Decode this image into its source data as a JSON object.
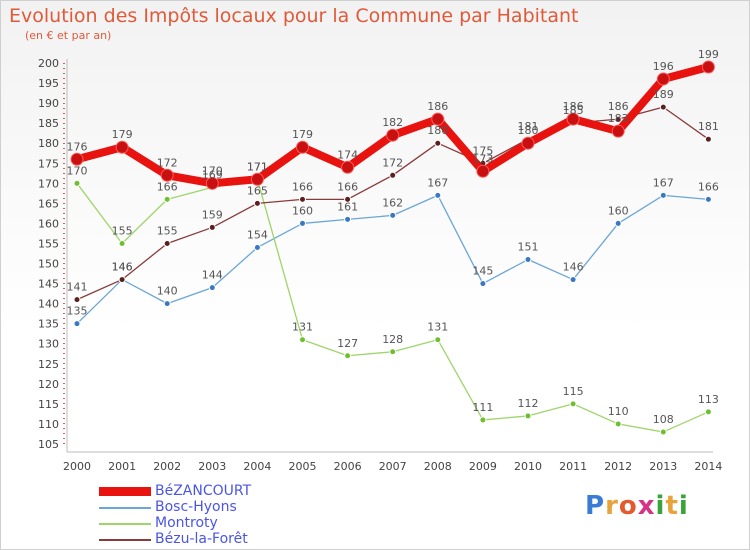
{
  "title": "Evolution des Impôts locaux pour la Commune par Habitant",
  "subtitle": "(en € et par an)",
  "logo": {
    "text": "Proxiti",
    "letters": [
      "P",
      "r",
      "o",
      "x",
      "i",
      "t",
      "i"
    ],
    "letter_colors": [
      "#3a7bd5",
      "#e8a33b",
      "#e35b2c",
      "#d63384",
      "#3aa33a",
      "#e8a33b",
      "#3aa33a"
    ]
  },
  "chart_data": {
    "type": "line",
    "categories": [
      "2000",
      "2001",
      "2002",
      "2003",
      "2004",
      "2005",
      "2006",
      "2007",
      "2008",
      "2009",
      "2010",
      "2011",
      "2012",
      "2013",
      "2014"
    ],
    "ylim": [
      105,
      200
    ],
    "yticks": [
      105,
      110,
      115,
      120,
      125,
      130,
      135,
      140,
      145,
      150,
      155,
      160,
      165,
      170,
      175,
      180,
      185,
      190,
      195,
      200
    ],
    "grid": false,
    "legend_position": "bottom-left",
    "series": [
      {
        "name": "BéZANCOURT",
        "color": "#e8120e",
        "marker": "#c91010",
        "emphasis": true,
        "values": [
          176,
          179,
          172,
          170,
          171,
          179,
          174,
          182,
          186,
          173,
          180,
          186,
          183,
          196,
          199
        ],
        "labels": [
          "176",
          "179",
          "172",
          "170",
          "171",
          "179",
          "174",
          "182",
          "186",
          "173",
          "180",
          "186",
          "183",
          "196",
          "199"
        ]
      },
      {
        "name": "Bosc-Hyons",
        "color": "#6aa6d8",
        "marker": "#3a78c2",
        "emphasis": false,
        "values": [
          135,
          146,
          140,
          144,
          154,
          160,
          161,
          162,
          167,
          145,
          151,
          146,
          160,
          167,
          166
        ],
        "labels": [
          "135",
          "146",
          "140",
          "144",
          "154",
          "160",
          "161",
          "162",
          "167",
          "145",
          "151",
          "146",
          "160",
          "167",
          "166"
        ]
      },
      {
        "name": "Montroty",
        "color": "#9ed56a",
        "marker": "#6fbf2e",
        "emphasis": false,
        "values": [
          170,
          155,
          166,
          169,
          171,
          131,
          127,
          128,
          131,
          111,
          112,
          115,
          110,
          108,
          113
        ],
        "labels": [
          "170",
          "155",
          "166",
          "169",
          "171",
          "131",
          "127",
          "128",
          "131",
          "111",
          "112",
          "115",
          "110",
          "108",
          "113"
        ]
      },
      {
        "name": "Bézu-la-Forêt",
        "color": "#8a3a3a",
        "marker": "#5a1f1f",
        "emphasis": false,
        "values": [
          141,
          146,
          155,
          159,
          165,
          166,
          166,
          172,
          180,
          175,
          181,
          185,
          186,
          189,
          181
        ],
        "labels": [
          "141",
          "146",
          "155",
          "159",
          "165",
          "166",
          "166",
          "172",
          "180",
          "175",
          "181",
          "185",
          "186",
          "189",
          "181"
        ]
      }
    ]
  }
}
